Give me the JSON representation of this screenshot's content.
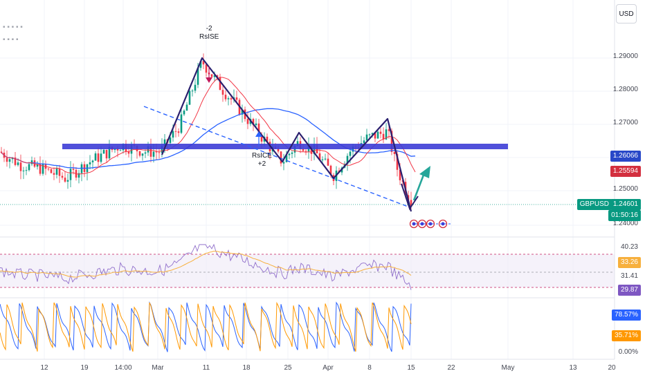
{
  "currency_button": "USD",
  "symbol_tag": "GBPUSD",
  "price_axis": {
    "ticks": [
      "1.29000",
      "1.28000",
      "1.27000",
      "1.25000",
      "1.24000"
    ],
    "tags": [
      {
        "value": "1.26066",
        "color": "#2848c8"
      },
      {
        "value": "1.25594",
        "color": "#d32f3f"
      },
      {
        "value": "1.24601",
        "color": "#089981"
      },
      {
        "value": "01:50:16",
        "color": "#089981"
      }
    ]
  },
  "pattern_labels": {
    "top": "-2\nRsISE",
    "bottom": "RsICE\n+2"
  },
  "rsi_axis": {
    "v1": "40.23",
    "v2": "33.26",
    "v3": "31.41",
    "v4": "29.87"
  },
  "osc_axis": {
    "v1": "78.57%",
    "v2": "35.71%",
    "v3": "0.00%"
  },
  "x_labels": [
    "12",
    "19",
    "14:00",
    "Mar",
    "11",
    "18",
    "25",
    "Apr",
    "8",
    "15",
    "22",
    "May",
    "13",
    "20"
  ],
  "colors": {
    "candle_up": "#089981",
    "candle_down": "#f23645",
    "ma_blue": "#2962ff",
    "ma_red": "#f23645",
    "zone": "#3d3dd6",
    "trend_dash": "#2962ff",
    "pattern_line": "#2a1f6e",
    "arrow_up": "#26a69a",
    "rsi_line": "#7e57c2",
    "rsi_signal": "#f7b03d",
    "osc_blue": "#2962ff",
    "osc_orange": "#ff9800"
  },
  "chart_data": {
    "type": "line",
    "title": "GBPUSD",
    "ylim": [
      1.238,
      1.296
    ],
    "key_prices": {
      "zone": 1.2607,
      "ma_blue_last": 1.26066,
      "ma_red_last": 1.25594,
      "last_price": 1.24601
    },
    "price_path": [
      {
        "x": "12",
        "y": 1.256
      },
      {
        "x": "19",
        "y": 1.259
      },
      {
        "x": "14:00",
        "y": 1.264
      },
      {
        "x": "Mar",
        "y": 1.262
      },
      {
        "x": "11",
        "y": 1.289
      },
      {
        "x": "18",
        "y": 1.271
      },
      {
        "x": "25",
        "y": 1.259
      },
      {
        "x": "Apr",
        "y": 1.263
      },
      {
        "x": "8",
        "y": 1.266
      },
      {
        "x": "15",
        "y": 1.246
      }
    ],
    "rsi": {
      "levels": [
        40.23,
        33.26,
        31.41,
        29.87
      ]
    },
    "oscillator": {
      "levels": [
        78.57,
        35.71,
        0.0
      ]
    }
  }
}
